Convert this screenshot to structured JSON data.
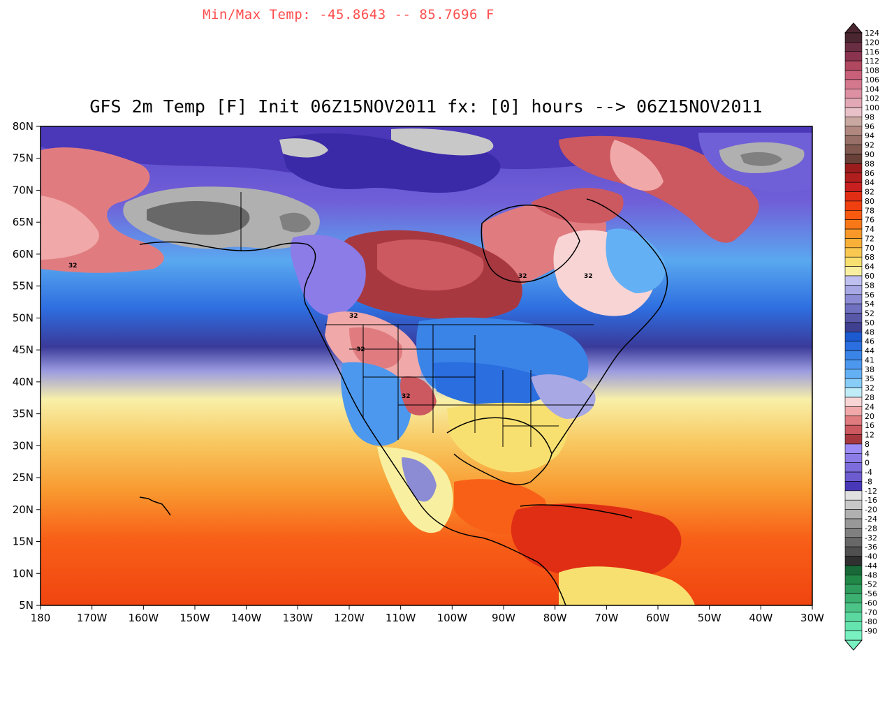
{
  "header": {
    "minmax_text": "Min/Max Temp: -45.8643 -- 85.7696 F",
    "title": "GFS 2m Temp [F] Init 06Z15NOV2011 fx: [0] hours --> 06Z15NOV2011"
  },
  "map": {
    "lat_labels": [
      "80N",
      "75N",
      "70N",
      "65N",
      "60N",
      "55N",
      "50N",
      "45N",
      "40N",
      "35N",
      "30N",
      "25N",
      "20N",
      "15N",
      "10N",
      "5N"
    ],
    "lon_labels": [
      "180",
      "170W",
      "160W",
      "150W",
      "140W",
      "130W",
      "120W",
      "110W",
      "100W",
      "90W",
      "80W",
      "70W",
      "60W",
      "50W",
      "40W",
      "30W"
    ],
    "contour_label": "32"
  },
  "colorbar": {
    "labels": [
      "124",
      "120",
      "116",
      "112",
      "108",
      "106",
      "104",
      "102",
      "100",
      "98",
      "96",
      "94",
      "92",
      "90",
      "88",
      "86",
      "84",
      "82",
      "80",
      "78",
      "76",
      "74",
      "72",
      "70",
      "68",
      "64",
      "60",
      "58",
      "56",
      "54",
      "52",
      "50",
      "48",
      "46",
      "44",
      "41",
      "38",
      "35",
      "32",
      "28",
      "24",
      "20",
      "16",
      "12",
      "8",
      "4",
      "0",
      "-4",
      "-8",
      "-12",
      "-16",
      "-20",
      "-24",
      "-28",
      "-32",
      "-36",
      "-40",
      "-44",
      "-48",
      "-52",
      "-56",
      "-60",
      "-70",
      "-80",
      "-90"
    ],
    "colors": [
      "#4a2630",
      "#6a2e42",
      "#8a3450",
      "#b04860",
      "#c8607a",
      "#d4788e",
      "#dc90a2",
      "#e2a8b6",
      "#e8c0c8",
      "#c8a8a0",
      "#b08880",
      "#987068",
      "#805850",
      "#684038",
      "#9a1c1c",
      "#b01e1e",
      "#c82020",
      "#e02e14",
      "#f04010",
      "#f85a10",
      "#f87818",
      "#f89828",
      "#f8b038",
      "#f8c850",
      "#f8e070",
      "#f8f0a0",
      "#c0c0f0",
      "#a8a8e4",
      "#8c8cd4",
      "#7070c0",
      "#5858a8",
      "#404090",
      "#1c5ad0",
      "#2a6ee0",
      "#3a84e8",
      "#4c98ee",
      "#64b0f4",
      "#88ccf8",
      "#c0ecf8",
      "#f8d4d4",
      "#f0a8a8",
      "#e07c80",
      "#cc5860",
      "#a83840",
      "#9c8cf4",
      "#8c7ce8",
      "#7c6cdc",
      "#6c5cd0",
      "#4838b8",
      "#e0e0e0",
      "#c8c8c8",
      "#b0b0b0",
      "#989898",
      "#808080",
      "#686868",
      "#505050",
      "#303030",
      "#186838",
      "#228848",
      "#2e9c5c",
      "#3cb070",
      "#4cc488",
      "#5ad8a0",
      "#66e4b0",
      "#78f0c0"
    ]
  }
}
